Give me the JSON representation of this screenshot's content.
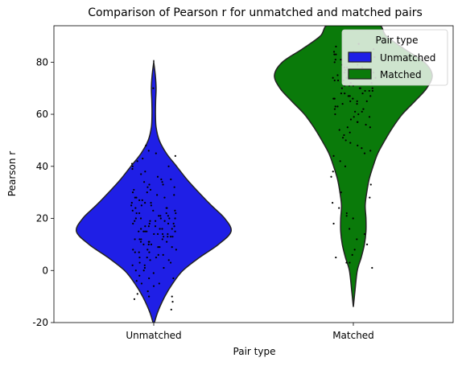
{
  "chart_data": {
    "type": "violin",
    "title": "Comparison of Pearson r for unmatched and matched pairs",
    "xlabel": "Pair type",
    "ylabel": "Pearson r",
    "categories": [
      "Unmatched",
      "Matched"
    ],
    "ylim": [
      -20,
      94
    ],
    "yticks": [
      -20,
      0,
      20,
      40,
      60,
      80
    ],
    "grid": false,
    "legend": {
      "title": "Pair type",
      "placement": "top-right",
      "entries": [
        {
          "name": "Unmatched",
          "color": "#1f1fe6"
        },
        {
          "name": "Matched",
          "color": "#0a7a0a"
        }
      ]
    },
    "series": [
      {
        "name": "Unmatched",
        "color": "#1f1fe6",
        "range": [
          -21,
          80
        ],
        "density": [
          {
            "y": -21,
            "w": 0.0
          },
          {
            "y": -16,
            "w": 0.05
          },
          {
            "y": -10,
            "w": 0.14
          },
          {
            "y": -5,
            "w": 0.24
          },
          {
            "y": 0,
            "w": 0.37
          },
          {
            "y": 5,
            "w": 0.58
          },
          {
            "y": 10,
            "w": 0.82
          },
          {
            "y": 15,
            "w": 0.98
          },
          {
            "y": 20,
            "w": 0.9
          },
          {
            "y": 25,
            "w": 0.73
          },
          {
            "y": 30,
            "w": 0.57
          },
          {
            "y": 35,
            "w": 0.42
          },
          {
            "y": 40,
            "w": 0.29
          },
          {
            "y": 45,
            "w": 0.16
          },
          {
            "y": 50,
            "w": 0.07
          },
          {
            "y": 55,
            "w": 0.03
          },
          {
            "y": 60,
            "w": 0.022
          },
          {
            "y": 65,
            "w": 0.024
          },
          {
            "y": 70,
            "w": 0.03
          },
          {
            "y": 75,
            "w": 0.02
          },
          {
            "y": 80,
            "w": 0.0
          }
        ],
        "points": [
          -15,
          -12,
          -11,
          -10,
          -10,
          -9,
          -8,
          -6,
          -5,
          -5,
          -4,
          -3,
          -3,
          -2,
          -1,
          0,
          0,
          1,
          1,
          2,
          2,
          3,
          3,
          4,
          4,
          5,
          5,
          5,
          6,
          6,
          7,
          7,
          7,
          8,
          8,
          8,
          9,
          9,
          9,
          10,
          10,
          10,
          10,
          11,
          11,
          11,
          11,
          12,
          12,
          12,
          12,
          13,
          13,
          13,
          13,
          14,
          14,
          14,
          14,
          15,
          15,
          15,
          15,
          15,
          16,
          16,
          16,
          16,
          17,
          17,
          17,
          17,
          18,
          18,
          18,
          18,
          19,
          19,
          19,
          19,
          20,
          20,
          20,
          20,
          20,
          21,
          21,
          21,
          22,
          22,
          22,
          22,
          23,
          23,
          23,
          24,
          24,
          24,
          25,
          25,
          25,
          26,
          26,
          26,
          27,
          27,
          28,
          28,
          28,
          29,
          29,
          30,
          30,
          31,
          31,
          32,
          32,
          33,
          33,
          34,
          34,
          35,
          35,
          36,
          37,
          38,
          39,
          40,
          40,
          41,
          42,
          43,
          44,
          45,
          46,
          48,
          70
        ]
      },
      {
        "name": "Matched",
        "color": "#0a7a0a",
        "range": [
          -14,
          95
        ],
        "density": [
          {
            "y": -14,
            "w": 0.0
          },
          {
            "y": -8,
            "w": 0.02
          },
          {
            "y": 0,
            "w": 0.05
          },
          {
            "y": 5,
            "w": 0.1
          },
          {
            "y": 10,
            "w": 0.14
          },
          {
            "y": 15,
            "w": 0.16
          },
          {
            "y": 20,
            "w": 0.16
          },
          {
            "y": 25,
            "w": 0.15
          },
          {
            "y": 30,
            "w": 0.17
          },
          {
            "y": 35,
            "w": 0.2
          },
          {
            "y": 40,
            "w": 0.25
          },
          {
            "y": 45,
            "w": 0.31
          },
          {
            "y": 50,
            "w": 0.4
          },
          {
            "y": 55,
            "w": 0.5
          },
          {
            "y": 60,
            "w": 0.62
          },
          {
            "y": 65,
            "w": 0.78
          },
          {
            "y": 70,
            "w": 0.93
          },
          {
            "y": 75,
            "w": 1.0
          },
          {
            "y": 80,
            "w": 0.9
          },
          {
            "y": 85,
            "w": 0.65
          },
          {
            "y": 90,
            "w": 0.42
          },
          {
            "y": 95,
            "w": 0.28
          }
        ],
        "points": [
          1,
          3,
          3,
          5,
          6,
          8,
          10,
          12,
          14,
          16,
          18,
          20,
          21,
          22,
          24,
          26,
          28,
          30,
          33,
          36,
          38,
          40,
          42,
          44,
          45,
          46,
          47,
          48,
          49,
          50,
          51,
          52,
          53,
          54,
          55,
          55,
          56,
          57,
          57,
          58,
          59,
          59,
          60,
          60,
          61,
          61,
          62,
          62,
          63,
          63,
          64,
          64,
          65,
          65,
          65,
          66,
          66,
          66,
          67,
          67,
          67,
          68,
          68,
          68,
          69,
          69,
          69,
          70,
          70,
          70,
          70,
          71,
          71,
          71,
          72,
          72,
          72,
          73,
          73,
          73,
          74,
          74,
          74,
          74,
          75,
          75,
          75,
          75,
          76,
          76,
          76,
          77,
          77,
          77,
          78,
          78,
          78,
          79,
          79,
          80,
          80,
          80,
          81,
          81,
          82,
          82,
          83,
          83,
          84,
          84,
          85,
          86,
          87
        ]
      }
    ]
  }
}
